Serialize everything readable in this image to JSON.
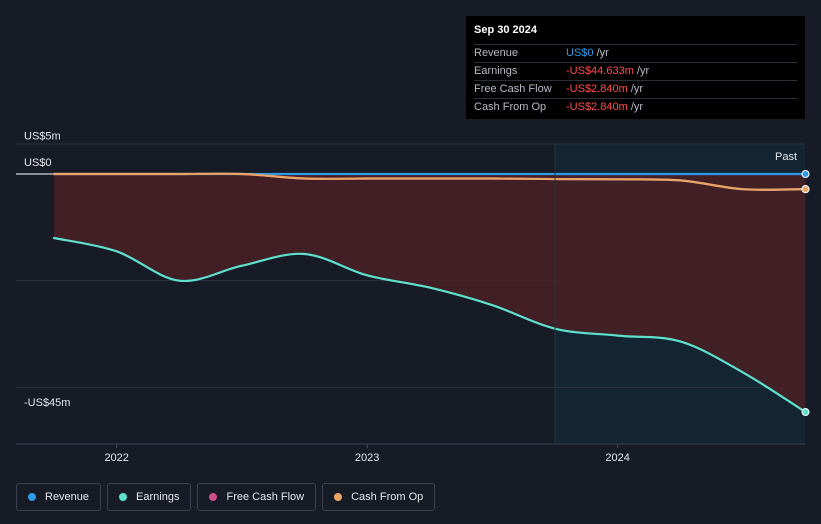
{
  "colors": {
    "revenue": "#2f9be6",
    "earnings": "#5ee2cf",
    "free_cash_flow": "#cf4d89",
    "cash_from_op": "#e8a765",
    "negative_fill": "#4a2025",
    "past_bg": "#132433"
  },
  "tooltip": {
    "date": "Sep 30 2024",
    "rows": [
      {
        "label": "Revenue",
        "value": "US$0",
        "unit": " /yr",
        "color": "#2f9be6"
      },
      {
        "label": "Earnings",
        "value": "-US$44.633m",
        "unit": " /yr",
        "color": "#ff4d4d"
      },
      {
        "label": "Free Cash Flow",
        "value": "-US$2.840m",
        "unit": " /yr",
        "color": "#ff4d4d"
      },
      {
        "label": "Cash From Op",
        "value": "-US$2.840m",
        "unit": " /yr",
        "color": "#ff4d4d"
      }
    ]
  },
  "legend": [
    {
      "label": "Revenue",
      "color": "#2f9be6"
    },
    {
      "label": "Earnings",
      "color": "#5ee2cf"
    },
    {
      "label": "Free Cash Flow",
      "color": "#cf4d89"
    },
    {
      "label": "Cash From Op",
      "color": "#e8a765"
    }
  ],
  "chart_data": {
    "type": "line",
    "y_tick_labels": [
      "US$5m",
      "US$0",
      "-US$45m"
    ],
    "y_ticks": [
      5,
      0,
      -45
    ],
    "ylim": [
      -45,
      5
    ],
    "x_tick_labels": [
      "2022",
      "2023",
      "2024"
    ],
    "x_ticks": [
      2022,
      2023,
      2024
    ],
    "xlim": [
      2021.6,
      2024.75
    ],
    "past_label": "Past",
    "past_start": 2023.75,
    "series": [
      {
        "name": "Revenue",
        "key": "revenue",
        "x": [
          2021.75,
          2022.0,
          2022.25,
          2022.5,
          2022.75,
          2023.0,
          2023.25,
          2023.5,
          2023.75,
          2024.0,
          2024.25,
          2024.5,
          2024.75
        ],
        "values": [
          0,
          0,
          0,
          0,
          0,
          0,
          0,
          0,
          0,
          0,
          0,
          0,
          0
        ]
      },
      {
        "name": "Earnings",
        "key": "earnings",
        "x": [
          2021.75,
          2022.0,
          2022.25,
          2022.5,
          2022.75,
          2023.0,
          2023.25,
          2023.5,
          2023.75,
          2024.0,
          2024.25,
          2024.5,
          2024.75
        ],
        "values": [
          -12.0,
          -14.5,
          -20.0,
          -17.2,
          -15.0,
          -19.0,
          -21.3,
          -24.6,
          -29.0,
          -30.3,
          -31.4,
          -37.2,
          -44.633
        ]
      },
      {
        "name": "Free Cash Flow",
        "key": "free_cash_flow",
        "x": [
          2021.75,
          2022.0,
          2022.25,
          2022.5,
          2022.75,
          2023.0,
          2023.25,
          2023.5,
          2023.75,
          2024.0,
          2024.25,
          2024.5,
          2024.75
        ],
        "values": [
          0,
          0,
          0,
          0,
          -0.85,
          -0.85,
          -0.85,
          -0.85,
          -0.95,
          -1.0,
          -1.2,
          -2.85,
          -2.84
        ]
      },
      {
        "name": "Cash From Op",
        "key": "cash_from_op",
        "x": [
          2021.75,
          2022.0,
          2022.25,
          2022.5,
          2022.75,
          2023.0,
          2023.25,
          2023.5,
          2023.75,
          2024.0,
          2024.25,
          2024.5,
          2024.75
        ],
        "values": [
          0,
          0,
          0,
          0,
          -0.85,
          -0.85,
          -0.85,
          -0.85,
          -0.95,
          -1.0,
          -1.2,
          -2.85,
          -2.84
        ]
      }
    ]
  }
}
